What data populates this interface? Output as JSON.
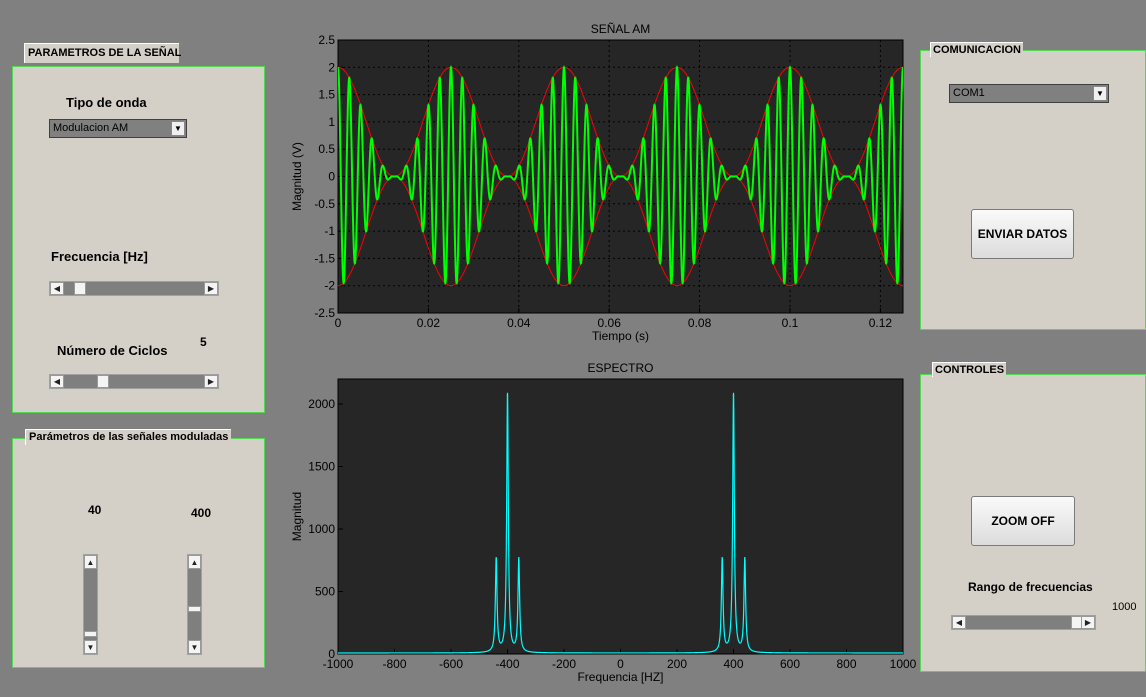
{
  "signal_panel": {
    "title": "PARAMETROS DE LA SEÑAL",
    "wave_type_label": "Tipo de onda",
    "wave_type_value": "Modulacion AM",
    "frequency_label": "Frecuencia [Hz]",
    "frequency_slider_level": 0.08,
    "cycles_label": "Número de Ciclos",
    "cycles_value": "5",
    "cycles_slider_level": 0.25
  },
  "modulated_panel": {
    "title": "Parámetros de las señales moduladas",
    "slider1_value": "40",
    "slider1_level": 0.08,
    "slider2_value": "400",
    "slider2_level": 0.45
  },
  "comm_panel": {
    "title": "COMUNICACION",
    "port_value": "COM1",
    "send_button": "ENVIAR DATOS"
  },
  "controls_panel": {
    "title": "CONTROLES",
    "zoom_button": "ZOOM OFF",
    "range_label": "Rango de frecuencias",
    "range_value": "1000",
    "range_slider_level": 1.0
  },
  "colors": {
    "plot_bg": "#262626",
    "am_signal": "#00ff00",
    "envelope": "#ff0000",
    "spectrum": "#00ffff"
  },
  "chart_data": [
    {
      "type": "line",
      "title": "SEÑAL AM",
      "xlabel": "Tiempo (s)",
      "ylabel": "Magnitud (V)",
      "xlim": [
        0,
        0.125
      ],
      "ylim": [
        -2.5,
        2.5
      ],
      "xticks": [
        "0",
        "0.02",
        "0.04",
        "0.06",
        "0.08",
        "0.1",
        "0.12"
      ],
      "xtick_values": [
        0,
        0.02,
        0.04,
        0.06,
        0.08,
        0.1,
        0.12
      ],
      "yticks": [
        "2.5",
        "2",
        "1.5",
        "1",
        "0.5",
        "0",
        "-0.5",
        "-1",
        "-1.5",
        "-2",
        "-2.5"
      ],
      "ytick_values": [
        2.5,
        2,
        1.5,
        1,
        0.5,
        0,
        -0.5,
        -1,
        -1.5,
        -2,
        -2.5
      ],
      "grid": true,
      "modulating_frequency_hz": 40,
      "carrier_frequency_hz": 400,
      "carrier_amplitude": 1,
      "modulation_index": 1
    },
    {
      "type": "line",
      "title": "ESPECTRO",
      "xlabel": "Frequencia [HZ]",
      "ylabel": "Magnitud",
      "xlim": [
        -1000,
        1000
      ],
      "ylim": [
        0,
        2200
      ],
      "xticks": [
        "-1000",
        "-800",
        "-600",
        "-400",
        "-200",
        "0",
        "200",
        "400",
        "600",
        "800",
        "1000"
      ],
      "xtick_values": [
        -1000,
        -800,
        -600,
        -400,
        -200,
        0,
        200,
        400,
        600,
        800,
        1000
      ],
      "yticks": [
        "2000",
        "1500",
        "1000",
        "500",
        "0"
      ],
      "ytick_values": [
        2000,
        1500,
        1000,
        500,
        0
      ],
      "grid": false,
      "peaks": [
        {
          "x": -440,
          "y": 750
        },
        {
          "x": -400,
          "y": 2070
        },
        {
          "x": -360,
          "y": 750
        },
        {
          "x": 360,
          "y": 750
        },
        {
          "x": 400,
          "y": 2070
        },
        {
          "x": 440,
          "y": 750
        }
      ]
    }
  ]
}
